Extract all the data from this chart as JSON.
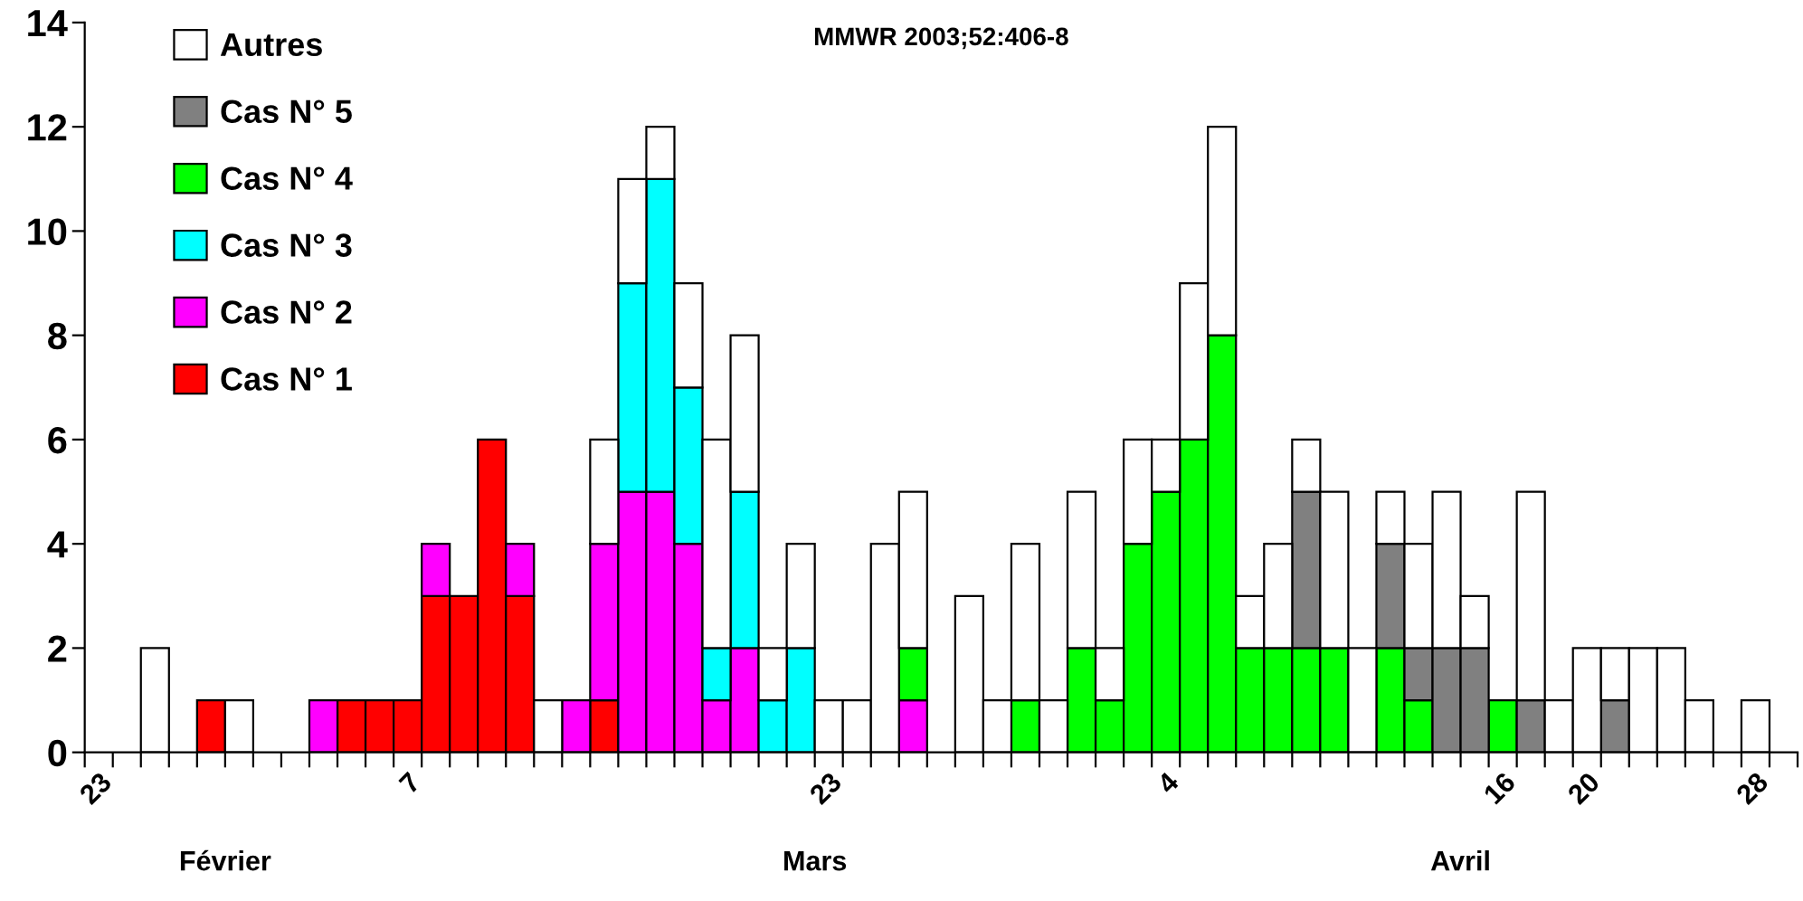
{
  "chart_data": {
    "type": "bar",
    "stacked": true,
    "title": "MMWR 2003;52:406-8",
    "categories": [
      "23",
      null,
      null,
      null,
      null,
      null,
      null,
      null,
      null,
      null,
      null,
      "7",
      null,
      null,
      null,
      null,
      null,
      null,
      null,
      null,
      null,
      null,
      null,
      null,
      null,
      null,
      "23",
      null,
      null,
      null,
      null,
      null,
      null,
      null,
      null,
      null,
      null,
      null,
      "4",
      null,
      null,
      null,
      null,
      null,
      null,
      null,
      null,
      null,
      null,
      null,
      "16",
      null,
      null,
      "20",
      null,
      null,
      null,
      null,
      null,
      "28",
      null
    ],
    "series": [
      {
        "name": "Cas N° 1",
        "color": "#ff0000",
        "values": [
          0,
          0,
          0,
          0,
          1,
          0,
          0,
          0,
          0,
          1,
          1,
          1,
          3,
          3,
          6,
          3,
          0,
          0,
          1,
          0,
          0,
          0,
          0,
          0,
          0,
          0,
          0,
          0,
          0,
          0,
          0,
          0,
          0,
          0,
          0,
          0,
          0,
          0,
          0,
          0,
          0,
          0,
          0,
          0,
          0,
          0,
          0,
          0,
          0,
          0,
          0,
          0,
          0,
          0,
          0,
          0,
          0,
          0,
          0,
          0,
          0
        ]
      },
      {
        "name": "Cas N° 2",
        "color": "#ff00ff",
        "values": [
          0,
          0,
          0,
          0,
          0,
          0,
          0,
          0,
          1,
          0,
          0,
          0,
          1,
          0,
          0,
          1,
          0,
          1,
          3,
          5,
          5,
          4,
          1,
          2,
          0,
          0,
          0,
          0,
          0,
          1,
          0,
          0,
          0,
          0,
          0,
          0,
          0,
          0,
          0,
          0,
          0,
          0,
          0,
          0,
          0,
          0,
          0,
          0,
          0,
          0,
          0,
          0,
          0,
          0,
          0,
          0,
          0,
          0,
          0,
          0,
          0
        ]
      },
      {
        "name": "Cas N° 3",
        "color": "#00ffff",
        "values": [
          0,
          0,
          0,
          0,
          0,
          0,
          0,
          0,
          0,
          0,
          0,
          0,
          0,
          0,
          0,
          0,
          0,
          0,
          0,
          4,
          6,
          3,
          1,
          3,
          1,
          2,
          0,
          0,
          0,
          0,
          0,
          0,
          0,
          0,
          0,
          0,
          0,
          0,
          0,
          0,
          0,
          0,
          0,
          0,
          0,
          0,
          0,
          0,
          0,
          0,
          0,
          0,
          0,
          0,
          0,
          0,
          0,
          0,
          0,
          0,
          0
        ]
      },
      {
        "name": "Cas N° 4",
        "color": "#00ff00",
        "values": [
          0,
          0,
          0,
          0,
          0,
          0,
          0,
          0,
          0,
          0,
          0,
          0,
          0,
          0,
          0,
          0,
          0,
          0,
          0,
          0,
          0,
          0,
          0,
          0,
          0,
          0,
          0,
          0,
          0,
          1,
          0,
          0,
          0,
          1,
          0,
          2,
          1,
          4,
          5,
          6,
          8,
          2,
          2,
          2,
          2,
          0,
          2,
          1,
          0,
          0,
          1,
          0,
          0,
          0,
          0,
          0,
          0,
          0,
          0,
          0,
          0
        ]
      },
      {
        "name": "Cas N° 5",
        "color": "#808080",
        "values": [
          0,
          0,
          0,
          0,
          0,
          0,
          0,
          0,
          0,
          0,
          0,
          0,
          0,
          0,
          0,
          0,
          0,
          0,
          0,
          0,
          0,
          0,
          0,
          0,
          0,
          0,
          0,
          0,
          0,
          0,
          0,
          0,
          0,
          0,
          0,
          0,
          0,
          0,
          0,
          0,
          0,
          0,
          0,
          3,
          0,
          0,
          2,
          1,
          2,
          2,
          0,
          1,
          0,
          0,
          1,
          0,
          0,
          0,
          0,
          0,
          0
        ]
      },
      {
        "name": "Autres",
        "color": "#ffffff",
        "values": [
          0,
          0,
          2,
          0,
          0,
          1,
          0,
          0,
          0,
          0,
          0,
          0,
          0,
          0,
          0,
          0,
          1,
          0,
          2,
          2,
          1,
          2,
          4,
          3,
          1,
          2,
          1,
          1,
          4,
          3,
          0,
          3,
          1,
          3,
          1,
          3,
          1,
          2,
          1,
          3,
          4,
          1,
          2,
          1,
          3,
          2,
          1,
          2,
          3,
          1,
          0,
          4,
          1,
          2,
          1,
          2,
          2,
          1,
          0,
          1,
          0
        ]
      }
    ],
    "ylim": [
      0,
      14
    ],
    "yticks": [
      0,
      2,
      4,
      6,
      8,
      10,
      12,
      14
    ],
    "grid": false,
    "legend": "top left",
    "annotations": [
      "Février",
      "Mars",
      "Avril"
    ]
  }
}
